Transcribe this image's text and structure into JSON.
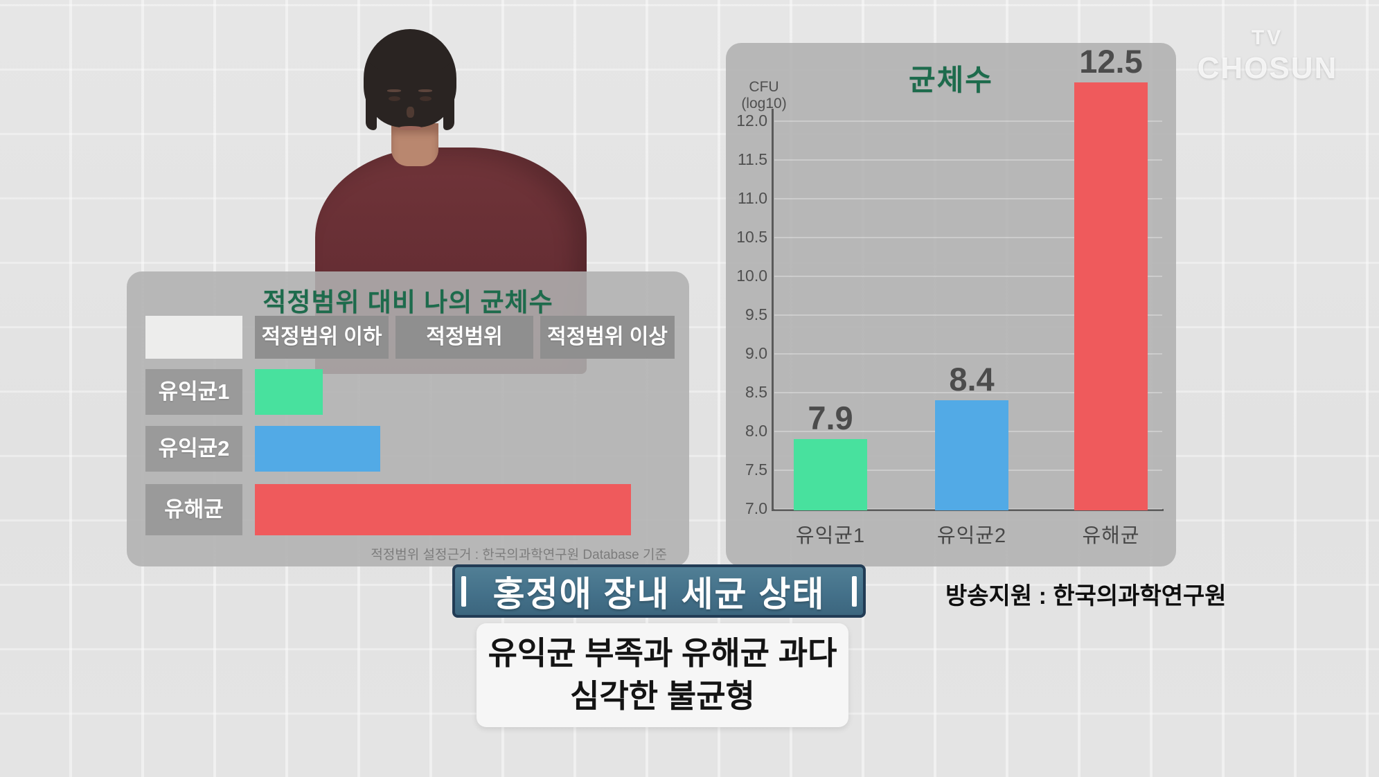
{
  "brand": {
    "tv": "TV",
    "name": "CHOSUN"
  },
  "left_panel": {
    "title": "적정범위 대비 나의 균체수",
    "header": {
      "col1": "",
      "col2": "적정범위 이하",
      "col3": "적정범위",
      "col4": "적정범위 이상"
    },
    "rows": [
      {
        "label": "유익균1",
        "zone": "적정범위 이하"
      },
      {
        "label": "유익균2",
        "zone": "적정범위 이하"
      },
      {
        "label": "유해균",
        "zone": "적정범위 이상"
      }
    ],
    "source": "적정범위 설정근거 : 한국의과학연구원 Database 기준"
  },
  "right_panel": {
    "title": "균체수",
    "unit_line1": "CFU",
    "unit_line2": "(log10)"
  },
  "chart_data": [
    {
      "type": "bar",
      "orientation": "horizontal",
      "title": "적정범위 대비 나의 균체수",
      "categories": [
        "유익균1",
        "유익균2",
        "유해균"
      ],
      "zones": [
        "적정범위 이하",
        "적정범위",
        "적정범위 이상"
      ],
      "relative_length": [
        0.162,
        0.299,
        0.896
      ],
      "colors": [
        "#48e19e",
        "#52aae6",
        "#ef5a5c"
      ],
      "note": "qualitative bars showing position versus optimal range; no numeric axis shown"
    },
    {
      "type": "bar",
      "title": "균체수",
      "ylabel": "CFU (log10)",
      "categories": [
        "유익균1",
        "유익균2",
        "유해균"
      ],
      "values": [
        7.9,
        8.4,
        12.5
      ],
      "value_labels": [
        "7.9",
        "8.4",
        "12.5"
      ],
      "colors": [
        "#48e19e",
        "#52aae6",
        "#ef5a5c"
      ],
      "ylim": [
        7.0,
        12.0
      ],
      "ytick_step": 0.5,
      "yticks": [
        "12.0",
        "11.5",
        "11.0",
        "10.5",
        "10.0",
        "9.5",
        "9.0",
        "8.5",
        "8.0",
        "7.5",
        "7.0"
      ],
      "grid": true,
      "legend": false
    }
  ],
  "banner": {
    "text": "홍정애 장내 세균 상태"
  },
  "caption": {
    "line1": "유익균 부족과 유해균 과다",
    "line2": "심각한 불균형"
  },
  "support_text": "방송지원 : 한국의과학연구원",
  "colors": {
    "accent_green": "#1d6b4c",
    "bar_green": "#48e19e",
    "bar_blue": "#52aae6",
    "bar_red": "#ef5a5c",
    "banner_bg": "#44718a",
    "banner_border": "#223c55",
    "panel_gray": "#b1b1b1"
  }
}
